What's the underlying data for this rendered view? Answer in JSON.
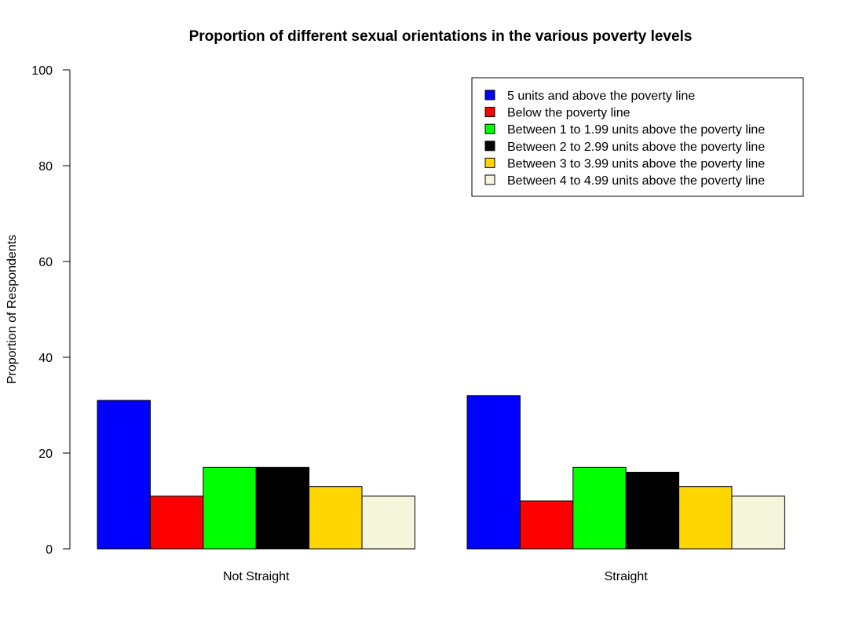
{
  "chart_data": {
    "type": "bar",
    "title": "Proportion of different sexual orientations in the various poverty levels",
    "xlabel": "",
    "ylabel": "Proportion of Respondents",
    "ylim": [
      0,
      100
    ],
    "yticks": [
      0,
      20,
      40,
      60,
      80,
      100
    ],
    "grid": false,
    "legend_position": "top-right",
    "categories": [
      "Not Straight",
      "Straight"
    ],
    "series": [
      {
        "name": "5 units and above the poverty line",
        "color": "#0000ff",
        "values": [
          31,
          32
        ]
      },
      {
        "name": "Below the poverty line",
        "color": "#ff0000",
        "values": [
          11,
          10
        ]
      },
      {
        "name": "Between 1 to 1.99 units above the poverty line",
        "color": "#00ff00",
        "values": [
          17,
          17
        ]
      },
      {
        "name": "Between 2 to 2.99 units above the poverty line",
        "color": "#000000",
        "values": [
          17,
          16
        ]
      },
      {
        "name": "Between 3 to 3.99 units above the poverty line",
        "color": "#ffd700",
        "values": [
          13,
          13
        ]
      },
      {
        "name": "Between 4 to 4.99 units above the poverty line",
        "color": "#f5f5dc",
        "values": [
          11,
          11
        ]
      }
    ]
  }
}
